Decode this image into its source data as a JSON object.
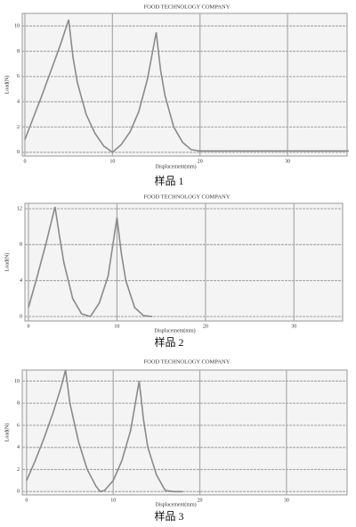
{
  "chart_data": [
    {
      "type": "line",
      "title": "FOOD TECHNOLOGY COMPANY",
      "xlabel": "Displacement(mm)",
      "ylabel": "Load(N)",
      "caption": "样品 1",
      "x": [
        0,
        1,
        2,
        3,
        4,
        5,
        5.5,
        6,
        7,
        8,
        9,
        10,
        11,
        12,
        13,
        14,
        15,
        15.5,
        16,
        17,
        18,
        19,
        20,
        25,
        30,
        37
      ],
      "values": [
        1,
        2.8,
        4.6,
        6.5,
        8.4,
        10.5,
        7.5,
        5.5,
        3,
        1.5,
        0.5,
        0,
        0.6,
        1.6,
        3.2,
        5.8,
        9.5,
        6.5,
        4.5,
        2,
        0.8,
        0.2,
        0.1,
        0.1,
        0.1,
        0.1
      ],
      "color": "#8a8a8a",
      "xlim": [
        -0.3,
        36.8
      ],
      "ylim": [
        -0.3,
        11
      ],
      "xticks": [
        0,
        10,
        20,
        30
      ],
      "yticks": [
        0,
        2,
        4,
        6,
        8,
        10
      ],
      "grid": true
    },
    {
      "type": "line",
      "title": "FOOD TECHNOLOGY COMPANY",
      "xlabel": "Displacement(mm)",
      "ylabel": "Load(N)",
      "caption": "样品 2",
      "x": [
        0,
        1,
        2,
        3,
        3.5,
        4,
        5,
        6,
        7,
        8,
        9,
        10,
        10.5,
        11,
        12,
        13,
        14
      ],
      "values": [
        1,
        4.5,
        8.2,
        12.2,
        9,
        6,
        2,
        0.3,
        0,
        1.5,
        4.5,
        11,
        7,
        4,
        1,
        0.1,
        0
      ],
      "color": "#8a8a8a",
      "xlim": [
        -0.4,
        35.5
      ],
      "ylim": [
        -0.5,
        12.6
      ],
      "xticks": [
        0,
        10,
        20,
        30
      ],
      "yticks": [
        0,
        4,
        8,
        12
      ],
      "grid": true
    },
    {
      "type": "line",
      "title": "FOOD TECHNOLOGY COMPANY",
      "xlabel": "Displacement(mm)",
      "ylabel": "Load(N)",
      "caption": "样品 3",
      "x": [
        0,
        1,
        2,
        3,
        4,
        4.5,
        5,
        6,
        7,
        8,
        8.5,
        9,
        10,
        11,
        12,
        13,
        13.5,
        14,
        15,
        16,
        17,
        18
      ],
      "values": [
        1,
        2.8,
        4.8,
        7,
        9.5,
        11,
        8,
        4.5,
        2,
        0.5,
        0,
        0.1,
        1,
        2.8,
        5.5,
        10,
        6.5,
        4,
        1.5,
        0.1,
        0,
        0
      ],
      "color": "#8a8a8a",
      "xlim": [
        -0.5,
        37
      ],
      "ylim": [
        -0.3,
        11
      ],
      "xticks": [
        0,
        10,
        20,
        30
      ],
      "yticks": [
        0,
        2,
        4,
        6,
        8,
        10
      ],
      "grid": true
    }
  ]
}
